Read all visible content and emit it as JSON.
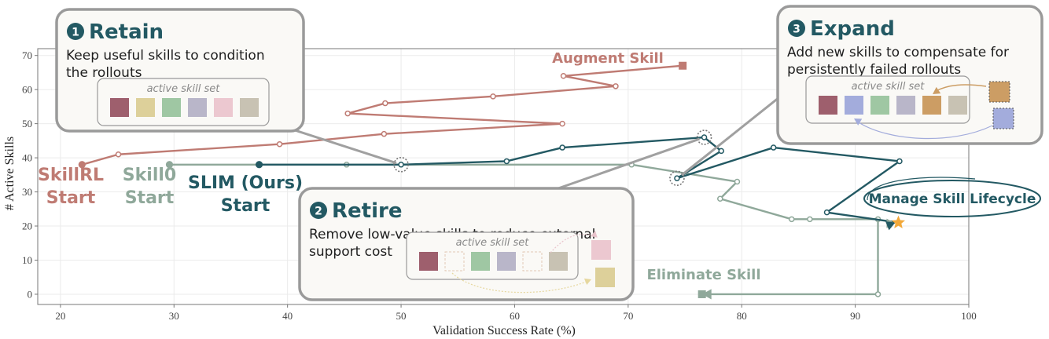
{
  "colors": {
    "skillrl": "#bf7b73",
    "skill0": "#8fa89a",
    "slim": "#235963",
    "star": "#f2a93b",
    "panel_border": "#9a9a9a",
    "panel_bg": "#faf9f6",
    "badge": "#235963",
    "skill_colors": [
      "#9e5f6d",
      "#ddd09a",
      "#9fc7a3",
      "#b9b6c9",
      "#ecc8d0",
      "#c8c2b3",
      "#a3acdc",
      "#cc9d64"
    ]
  },
  "chart_data": {
    "type": "line",
    "xlabel": "Validation Success Rate (%)",
    "ylabel": "# Active Skills",
    "xlim": [
      18,
      100
    ],
    "ylim": [
      -3,
      72
    ],
    "xticks": [
      20,
      30,
      40,
      50,
      60,
      70,
      80,
      90,
      100
    ],
    "yticks": [
      0,
      10,
      20,
      30,
      40,
      50,
      60,
      70
    ],
    "grid": true,
    "series": [
      {
        "name": "SkillRL",
        "color_key": "skillrl",
        "start_label": [
          "SkillRL",
          "Start"
        ],
        "points": [
          [
            21.9,
            38
          ],
          [
            25.1,
            41
          ],
          [
            39.3,
            44
          ],
          [
            48.5,
            47
          ],
          [
            64.2,
            50
          ],
          [
            45.3,
            53
          ],
          [
            48.6,
            56
          ],
          [
            58.1,
            58
          ],
          [
            68.9,
            61
          ],
          [
            64.3,
            64
          ],
          [
            74.8,
            67
          ]
        ]
      },
      {
        "name": "Skill0",
        "color_key": "skill0",
        "start_label": [
          "Skill0",
          "Start"
        ],
        "points": [
          [
            29.6,
            38
          ],
          [
            45.2,
            38
          ],
          [
            70.3,
            38
          ],
          [
            79.6,
            33
          ],
          [
            78.1,
            28
          ],
          [
            84.4,
            22
          ],
          [
            86.0,
            22
          ],
          [
            92.0,
            22
          ],
          [
            92.0,
            0
          ],
          [
            76.5,
            0
          ]
        ]
      },
      {
        "name": "SLIM (Ours)",
        "color_key": "slim",
        "start_label": [
          "SLIM (Ours)",
          "Start"
        ],
        "points": [
          [
            37.5,
            38
          ],
          [
            50.0,
            38
          ],
          [
            59.3,
            39
          ],
          [
            64.2,
            43
          ],
          [
            76.7,
            46
          ],
          [
            78.2,
            42
          ],
          [
            74.3,
            34
          ],
          [
            82.8,
            43
          ],
          [
            93.9,
            39
          ],
          [
            87.5,
            24
          ],
          [
            93.8,
            21
          ]
        ]
      }
    ],
    "annotations": {
      "augment": "Augment Skill",
      "eliminate": "Eliminate Skill",
      "lifecycle": "Manage Skill Lifecycle"
    }
  },
  "panels": {
    "retain": {
      "badge": "1",
      "title": "Retain",
      "lines": [
        "Keep useful skills to condition",
        "the rollouts"
      ],
      "skillset_label": "active skill set",
      "squares": [
        0,
        1,
        2,
        3,
        4,
        5
      ]
    },
    "retire": {
      "badge": "2",
      "title": "Retire",
      "lines": [
        "Remove low-value skills to reduce external",
        "support cost"
      ],
      "skillset_label": "active skill set",
      "squares": [
        0,
        -1,
        2,
        3,
        -1,
        5
      ],
      "removed": [
        4,
        1
      ]
    },
    "expand": {
      "badge": "3",
      "title": "Expand",
      "lines": [
        "Add new skills to compensate for",
        "persistently failed rollouts"
      ],
      "skillset_label": "active skill set",
      "squares": [
        0,
        6,
        2,
        3,
        7,
        5
      ],
      "new_squares": [
        7,
        6
      ]
    }
  }
}
